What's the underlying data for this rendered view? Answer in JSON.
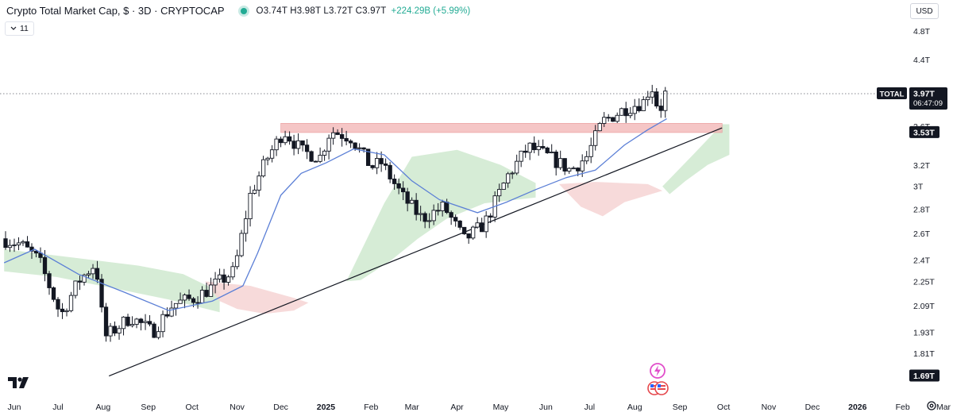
{
  "header": {
    "title": "Crypto Total Market Cap, $ · 3D · CRYPTOCAP",
    "ohlc": "O3.74T H3.98T L3.72T C3.97T",
    "change": "+224.29B (+5.99%)"
  },
  "indicator_pill": {
    "label": "11"
  },
  "currency_button": {
    "label": "USD"
  },
  "icons": {
    "tv_logo": "tradingview-logo-icon",
    "settings": "gear-icon",
    "event_flash": "lightning-event-icon",
    "event_flags": "flag-event-icon",
    "status": "market-status-icon"
  },
  "colors": {
    "up": "#22ab94",
    "candle": "#131722",
    "ma": "#5b7fd6",
    "cloud_green": "#cfe9cf",
    "cloud_red": "#f6d3d3",
    "zone": "#f1b3b3",
    "badge_bg": "#131722"
  },
  "chart_data": {
    "type": "candlestick",
    "title": "Crypto Total Market Cap, $ · 3D · CRYPTOCAP",
    "y_scale": "log",
    "y_ticks": [
      "4.8T",
      "4.4T",
      "3.6T",
      "3.2T",
      "3T",
      "2.8T",
      "2.6T",
      "2.4T",
      "2.25T",
      "2.09T",
      "1.93T",
      "1.81T"
    ],
    "y_tick_values": [
      4.8,
      4.4,
      3.6,
      3.2,
      3.0,
      2.8,
      2.6,
      2.4,
      2.25,
      2.09,
      1.93,
      1.81
    ],
    "x_ticks": [
      "Jun",
      "Jul",
      "Aug",
      "Sep",
      "Oct",
      "Nov",
      "Dec",
      "2025",
      "Feb",
      "Mar",
      "Apr",
      "May",
      "Jun",
      "Jul",
      "Aug",
      "Sep",
      "Oct",
      "Nov",
      "Dec",
      "2026",
      "Feb",
      "Mar"
    ],
    "x_tick_dates": [
      "2024-06-01",
      "2024-07-01",
      "2024-08-01",
      "2024-09-01",
      "2024-10-01",
      "2024-11-01",
      "2024-12-01",
      "2025-01-01",
      "2025-02-01",
      "2025-03-01",
      "2025-04-01",
      "2025-05-01",
      "2025-06-01",
      "2025-07-01",
      "2025-08-01",
      "2025-09-01",
      "2025-10-01",
      "2025-11-01",
      "2025-12-01",
      "2026-01-01",
      "2026-02-01",
      "2026-03-01"
    ],
    "badges": [
      {
        "label": "TOTAL",
        "value": "3.97T",
        "sub": "06:47:09",
        "level": 3.97
      },
      {
        "value": "3.53T",
        "level": 3.53
      },
      {
        "value": "1.69T",
        "level": 1.69
      }
    ],
    "current_price": 3.97,
    "resistance_zone": {
      "from": "2024-12-01",
      "to": "2025-09-30",
      "low": 3.53,
      "high": 3.63
    },
    "trendline": {
      "start": [
        "2024-08-05",
        1.69
      ],
      "end": [
        "2025-09-30",
        3.58
      ]
    },
    "anchors": [
      [
        "2024-05-25",
        2.56
      ],
      [
        "2024-06-07",
        2.52
      ],
      [
        "2024-06-20",
        2.4
      ],
      [
        "2024-07-05",
        2.03
      ],
      [
        "2024-07-17",
        2.25
      ],
      [
        "2024-07-29",
        2.38
      ],
      [
        "2024-08-04",
        1.9
      ],
      [
        "2024-08-22",
        2.02
      ],
      [
        "2024-09-06",
        1.93
      ],
      [
        "2024-09-20",
        2.1
      ],
      [
        "2024-10-05",
        2.14
      ],
      [
        "2024-10-15",
        2.2
      ],
      [
        "2024-11-01",
        2.32
      ],
      [
        "2024-11-12",
        2.92
      ],
      [
        "2024-11-23",
        3.25
      ],
      [
        "2024-12-05",
        3.55
      ],
      [
        "2024-12-18",
        3.33
      ],
      [
        "2024-12-30",
        3.28
      ],
      [
        "2025-01-06",
        3.55
      ],
      [
        "2025-01-20",
        3.48
      ],
      [
        "2025-02-03",
        3.18
      ],
      [
        "2025-02-10",
        3.22
      ],
      [
        "2025-02-25",
        2.9
      ],
      [
        "2025-03-10",
        2.72
      ],
      [
        "2025-03-25",
        2.82
      ],
      [
        "2025-04-08",
        2.55
      ],
      [
        "2025-04-22",
        2.68
      ],
      [
        "2025-05-08",
        3.1
      ],
      [
        "2025-05-22",
        3.38
      ],
      [
        "2025-06-05",
        3.28
      ],
      [
        "2025-06-20",
        3.15
      ],
      [
        "2025-07-01",
        3.28
      ],
      [
        "2025-07-12",
        3.65
      ],
      [
        "2025-07-28",
        3.8
      ],
      [
        "2025-08-10",
        3.88
      ],
      [
        "2025-08-14",
        4.1
      ],
      [
        "2025-08-20",
        3.74
      ],
      [
        "2025-08-23",
        3.97
      ]
    ],
    "ma_points": [
      [
        "2024-05-25",
        2.38
      ],
      [
        "2024-06-15",
        2.48
      ],
      [
        "2024-07-15",
        2.3
      ],
      [
        "2024-08-15",
        2.18
      ],
      [
        "2024-09-15",
        2.06
      ],
      [
        "2024-10-15",
        2.12
      ],
      [
        "2024-11-05",
        2.22
      ],
      [
        "2024-11-15",
        2.45
      ],
      [
        "2024-12-01",
        2.92
      ],
      [
        "2024-12-15",
        3.12
      ],
      [
        "2025-01-01",
        3.22
      ],
      [
        "2025-01-20",
        3.36
      ],
      [
        "2025-02-10",
        3.3
      ],
      [
        "2025-03-01",
        3.05
      ],
      [
        "2025-03-20",
        2.88
      ],
      [
        "2025-04-15",
        2.77
      ],
      [
        "2025-05-05",
        2.86
      ],
      [
        "2025-05-25",
        2.97
      ],
      [
        "2025-06-15",
        3.08
      ],
      [
        "2025-07-05",
        3.15
      ],
      [
        "2025-07-25",
        3.4
      ],
      [
        "2025-08-10",
        3.56
      ],
      [
        "2025-08-23",
        3.68
      ]
    ],
    "cloud_green": [
      [
        [
          "2024-05-25",
          2.48
        ],
        [
          "2024-07-10",
          2.42
        ],
        [
          "2024-08-25",
          2.36
        ],
        [
          "2024-09-25",
          2.3
        ],
        [
          "2024-10-20",
          2.18
        ],
        [
          "2024-10-20",
          2.05
        ],
        [
          "2024-09-15",
          2.13
        ],
        [
          "2024-08-10",
          2.2
        ],
        [
          "2024-06-30",
          2.28
        ],
        [
          "2024-05-25",
          2.32
        ]
      ],
      [
        [
          "2025-01-15",
          2.25
        ],
        [
          "2025-02-10",
          2.85
        ],
        [
          "2025-03-01",
          3.28
        ],
        [
          "2025-04-01",
          3.35
        ],
        [
          "2025-05-01",
          3.2
        ],
        [
          "2025-05-25",
          3.03
        ],
        [
          "2025-05-25",
          2.9
        ],
        [
          "2025-04-20",
          2.85
        ],
        [
          "2025-03-25",
          2.72
        ],
        [
          "2025-03-05",
          2.56
        ],
        [
          "2025-02-15",
          2.4
        ],
        [
          "2025-01-25",
          2.26
        ]
      ],
      [
        [
          "2025-08-20",
          3.0
        ],
        [
          "2025-09-10",
          3.3
        ],
        [
          "2025-09-30",
          3.62
        ],
        [
          "2025-10-05",
          3.62
        ],
        [
          "2025-10-05",
          3.3
        ],
        [
          "2025-09-20",
          3.2
        ],
        [
          "2025-09-05",
          3.05
        ],
        [
          "2025-08-25",
          2.93
        ]
      ]
    ],
    "cloud_red": [
      [
        [
          "2024-10-10",
          2.25
        ],
        [
          "2024-11-10",
          2.22
        ],
        [
          "2024-12-10",
          2.14
        ],
        [
          "2024-12-20",
          2.11
        ],
        [
          "2024-12-10",
          2.06
        ],
        [
          "2024-11-20",
          2.04
        ],
        [
          "2024-11-01",
          2.07
        ],
        [
          "2024-10-20",
          2.12
        ]
      ],
      [
        [
          "2025-06-10",
          3.02
        ],
        [
          "2025-07-05",
          3.04
        ],
        [
          "2025-08-10",
          3.02
        ],
        [
          "2025-08-20",
          2.96
        ],
        [
          "2025-07-25",
          2.86
        ],
        [
          "2025-07-10",
          2.74
        ],
        [
          "2025-06-25",
          2.82
        ]
      ]
    ]
  }
}
